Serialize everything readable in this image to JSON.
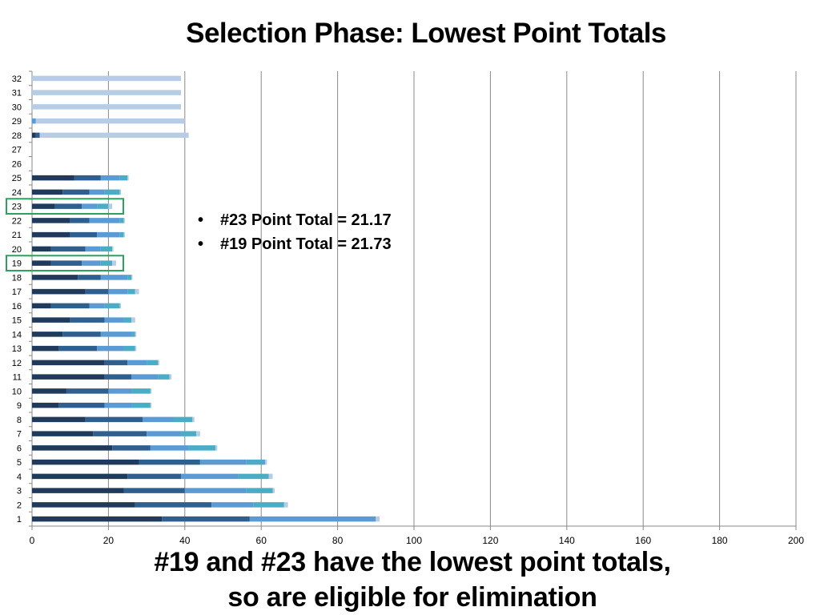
{
  "slide": {
    "title": "Selection Phase: Lowest Point Totals",
    "subtitle_line1": "#19 and #23 have the lowest point totals,",
    "subtitle_line2": "so are eligible for elimination",
    "annotations": [
      "#23 Point Total = 21.17",
      "#19 Point Total = 21.73"
    ],
    "highlighted_categories": [
      "23",
      "19"
    ],
    "highlight_color": "#2ca25f"
  },
  "chart_data": {
    "type": "bar",
    "orientation": "horizontal",
    "stacked": true,
    "categories": [
      "1",
      "2",
      "3",
      "4",
      "5",
      "6",
      "7",
      "8",
      "9",
      "10",
      "11",
      "12",
      "13",
      "14",
      "15",
      "16",
      "17",
      "18",
      "19",
      "20",
      "21",
      "22",
      "23",
      "24",
      "25",
      "26",
      "27",
      "28",
      "29",
      "30",
      "31",
      "32"
    ],
    "xlim": [
      0,
      200
    ],
    "xticks": [
      "0",
      "20",
      "40",
      "60",
      "80",
      "100",
      "120",
      "140",
      "160",
      "180",
      "200"
    ],
    "grid": "vertical",
    "legend": "none",
    "series_colors": [
      "#1f3a5a",
      "#2f5f8f",
      "#5b9bd5",
      "#4bacc6",
      "#b7cde5"
    ],
    "series": [
      {
        "values": [
          34,
          27,
          24,
          25,
          28,
          21,
          16,
          14,
          7,
          9,
          19,
          19,
          7,
          8,
          10,
          5,
          14,
          12,
          5,
          5,
          10,
          10,
          6,
          8,
          11,
          0,
          0,
          1,
          0,
          0,
          0,
          0
        ]
      },
      {
        "values": [
          23,
          20,
          16,
          14,
          16,
          10,
          14,
          15,
          12,
          11,
          7,
          6,
          10,
          10,
          9,
          10,
          6,
          6,
          8,
          9,
          7,
          5,
          7,
          7,
          7,
          0,
          0,
          1,
          0,
          0,
          0,
          0
        ]
      },
      {
        "values": [
          33,
          11,
          16,
          15,
          12,
          10,
          9,
          8,
          7,
          6,
          7,
          5,
          7,
          8,
          5,
          4,
          5,
          7,
          5,
          4,
          6,
          8,
          4,
          4,
          5,
          0,
          0,
          0,
          1,
          0,
          0,
          0
        ]
      },
      {
        "values": [
          0,
          8,
          7,
          8,
          5,
          7,
          4,
          5,
          5,
          5,
          3,
          3,
          3,
          1,
          2,
          4,
          2,
          1,
          3,
          3,
          1,
          1,
          3,
          4,
          2,
          0,
          0,
          0,
          0,
          0,
          0,
          0
        ]
      },
      {
        "values": [
          1,
          1,
          0.5,
          1,
          0.5,
          0.5,
          1,
          0.5,
          0.3,
          0.3,
          0.5,
          0.3,
          0.3,
          0.3,
          1,
          0.3,
          1,
          0.3,
          1,
          0.3,
          0.3,
          0.3,
          1,
          0.3,
          0.3,
          0,
          0,
          39,
          39,
          39,
          39,
          39
        ]
      }
    ]
  }
}
